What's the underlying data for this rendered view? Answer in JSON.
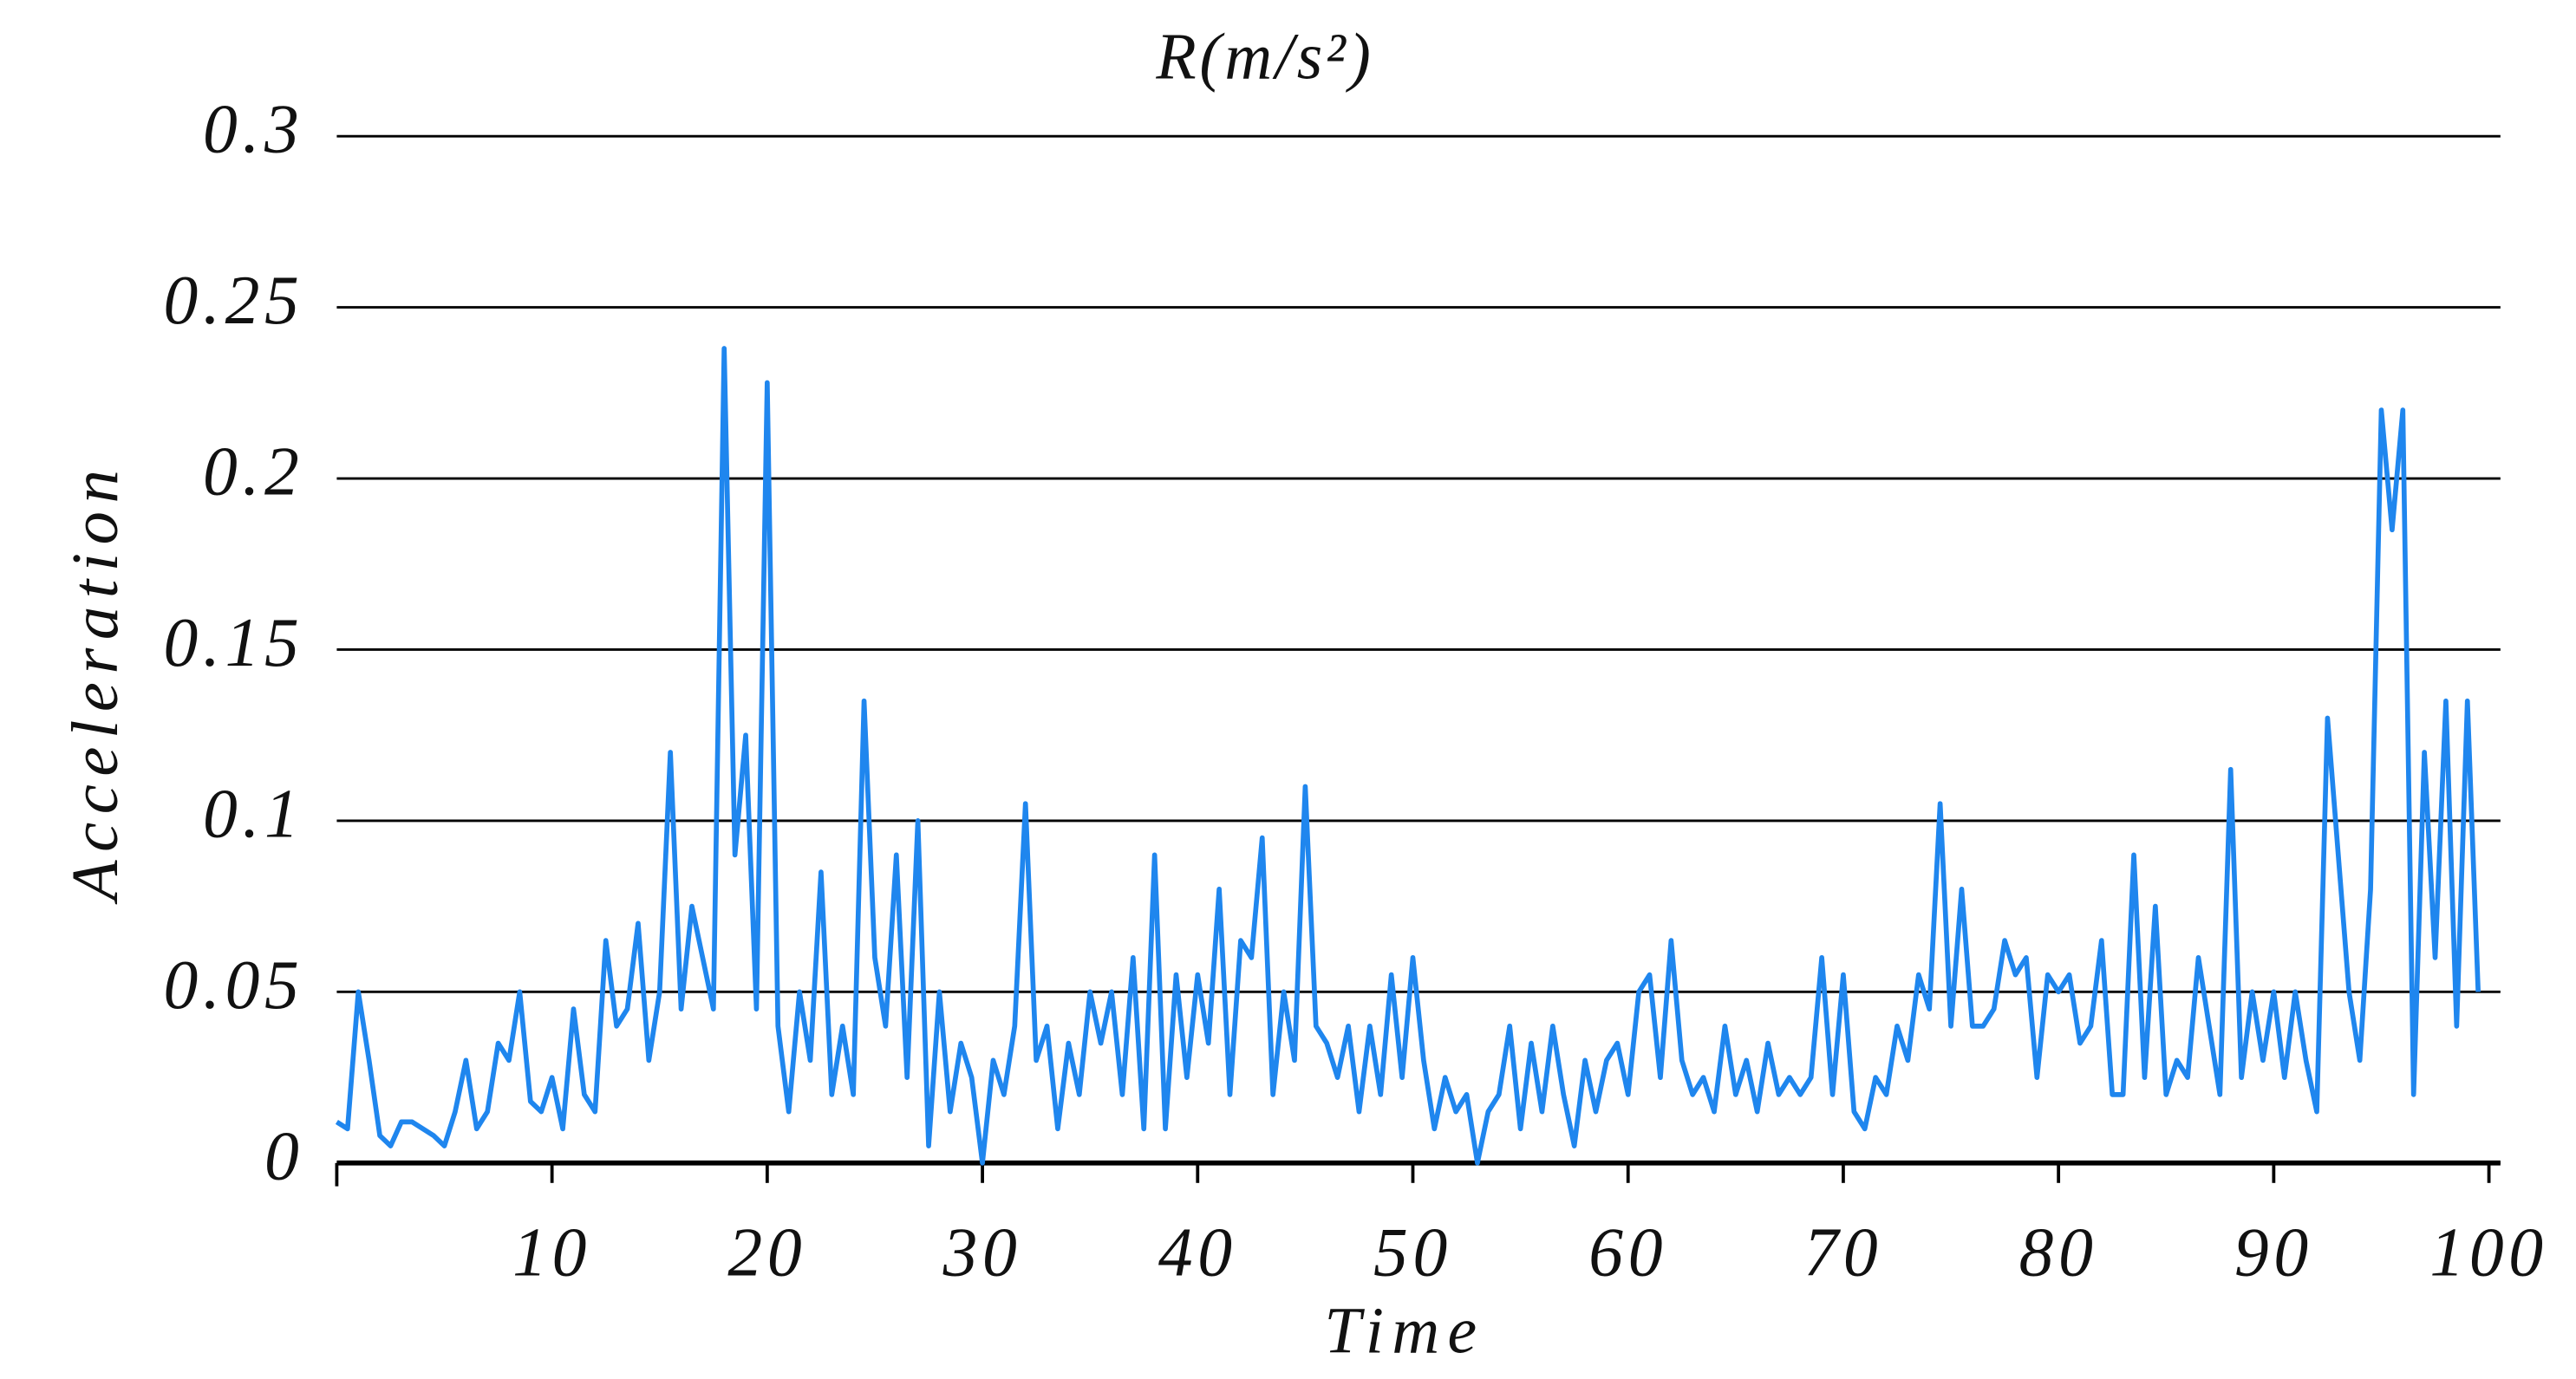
{
  "chart_data": {
    "type": "line",
    "title": "R(m/s²)",
    "x_label": "Time",
    "y_label": "Acceleration",
    "x": [
      0,
      0.5,
      1,
      1.5,
      2,
      2.5,
      3,
      3.5,
      4,
      4.5,
      5,
      5.5,
      6,
      6.5,
      7,
      7.5,
      8,
      8.5,
      9,
      9.5,
      10,
      10.5,
      11,
      11.5,
      12,
      12.5,
      13,
      13.5,
      14,
      14.5,
      15,
      15.5,
      16,
      16.5,
      17,
      17.5,
      18,
      18.5,
      19,
      19.5,
      20,
      20.5,
      21,
      21.5,
      22,
      22.5,
      23,
      23.5,
      24,
      24.5,
      25,
      25.5,
      26,
      26.5,
      27,
      27.5,
      28,
      28.5,
      29,
      29.5,
      30,
      30.5,
      31,
      31.5,
      32,
      32.5,
      33,
      33.5,
      34,
      34.5,
      35,
      35.5,
      36,
      36.5,
      37,
      37.5,
      38,
      38.5,
      39,
      39.5,
      40,
      40.5,
      41,
      41.5,
      42,
      42.5,
      43,
      43.5,
      44,
      44.5,
      45,
      45.5,
      46,
      46.5,
      47,
      47.5,
      48,
      48.5,
      49,
      49.5,
      50,
      50.5,
      51,
      51.5,
      52,
      52.5,
      53,
      53.5,
      54,
      54.5,
      55,
      55.5,
      56,
      56.5,
      57,
      57.5,
      58,
      58.5,
      59,
      59.5,
      60,
      60.5,
      61,
      61.5,
      62,
      62.5,
      63,
      63.5,
      64,
      64.5,
      65,
      65.5,
      66,
      66.5,
      67,
      67.5,
      68,
      68.5,
      69,
      69.5,
      70,
      70.5,
      71,
      71.5,
      72,
      72.5,
      73,
      73.5,
      74,
      74.5,
      75,
      75.5,
      76,
      76.5,
      77,
      77.5,
      78,
      78.5,
      79,
      79.5,
      80,
      80.5,
      81,
      81.5,
      82,
      82.5,
      83,
      83.5,
      84,
      84.5,
      85,
      85.5,
      86,
      86.5,
      87,
      87.5,
      88,
      88.5,
      89,
      89.5,
      90,
      90.5,
      91,
      91.5,
      92,
      92.5,
      93,
      93.5,
      94,
      94.5,
      95,
      95.5,
      96,
      96.5,
      97,
      97.5,
      98,
      98.5,
      99,
      99.5
    ],
    "series": [
      {
        "name": "R",
        "color": "#1f86ee",
        "values": [
          0.012,
          0.01,
          0.05,
          0.03,
          0.008,
          0.005,
          0.012,
          0.012,
          0.01,
          0.008,
          0.005,
          0.015,
          0.03,
          0.01,
          0.015,
          0.035,
          0.03,
          0.05,
          0.018,
          0.015,
          0.025,
          0.01,
          0.045,
          0.02,
          0.015,
          0.065,
          0.04,
          0.045,
          0.07,
          0.03,
          0.05,
          0.12,
          0.045,
          0.075,
          0.06,
          0.045,
          0.238,
          0.09,
          0.125,
          0.045,
          0.228,
          0.04,
          0.015,
          0.05,
          0.03,
          0.085,
          0.02,
          0.04,
          0.02,
          0.135,
          0.06,
          0.04,
          0.09,
          0.025,
          0.1,
          0.005,
          0.05,
          0.015,
          0.035,
          0.025,
          0,
          0.03,
          0.02,
          0.04,
          0.105,
          0.03,
          0.04,
          0.01,
          0.035,
          0.02,
          0.05,
          0.035,
          0.05,
          0.02,
          0.06,
          0.01,
          0.09,
          0.01,
          0.055,
          0.025,
          0.055,
          0.035,
          0.08,
          0.02,
          0.065,
          0.06,
          0.095,
          0.02,
          0.05,
          0.03,
          0.11,
          0.04,
          0.035,
          0.025,
          0.04,
          0.015,
          0.04,
          0.02,
          0.055,
          0.025,
          0.06,
          0.03,
          0.01,
          0.025,
          0.015,
          0.02,
          0,
          0.015,
          0.02,
          0.04,
          0.01,
          0.035,
          0.015,
          0.04,
          0.02,
          0.005,
          0.03,
          0.015,
          0.03,
          0.035,
          0.02,
          0.05,
          0.055,
          0.025,
          0.065,
          0.03,
          0.02,
          0.025,
          0.015,
          0.04,
          0.02,
          0.03,
          0.015,
          0.035,
          0.02,
          0.025,
          0.02,
          0.025,
          0.06,
          0.02,
          0.055,
          0.015,
          0.01,
          0.025,
          0.02,
          0.04,
          0.03,
          0.055,
          0.045,
          0.105,
          0.04,
          0.08,
          0.04,
          0.04,
          0.045,
          0.065,
          0.055,
          0.06,
          0.025,
          0.055,
          0.05,
          0.055,
          0.035,
          0.04,
          0.065,
          0.02,
          0.02,
          0.09,
          0.025,
          0.075,
          0.02,
          0.03,
          0.025,
          0.06,
          0.04,
          0.02,
          0.115,
          0.025,
          0.05,
          0.03,
          0.05,
          0.025,
          0.05,
          0.03,
          0.015,
          0.13,
          0.09,
          0.05,
          0.03,
          0.08,
          0.22,
          0.185,
          0.22,
          0.02,
          0.12,
          0.06,
          0.135,
          0.04,
          0.135,
          0.05
        ]
      }
    ],
    "xlim": [
      0,
      100
    ],
    "xticks": [
      10,
      20,
      30,
      40,
      50,
      60,
      70,
      80,
      90,
      100
    ],
    "ylim": [
      0,
      0.3
    ],
    "yticks": [
      0,
      0.05,
      0.1,
      0.15,
      0.2,
      0.25,
      0.3
    ],
    "grid": true
  }
}
